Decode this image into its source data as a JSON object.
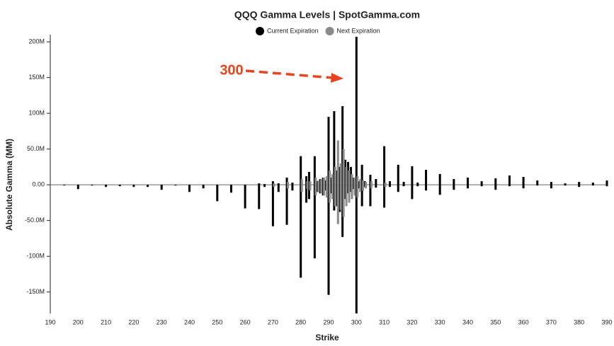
{
  "chart_data": {
    "type": "bar",
    "title": "QQQ Gamma Levels | SpotGamma.com",
    "x_label": "Strike",
    "y_label": "Absolute Gamma (MM)",
    "annotation": {
      "text": "300",
      "color": "#e8441e"
    },
    "x": [
      195,
      200,
      205,
      210,
      215,
      220,
      225,
      230,
      235,
      240,
      245,
      250,
      255,
      260,
      265,
      267,
      270,
      272,
      275,
      277,
      280,
      282,
      283,
      285,
      286,
      287,
      288,
      289,
      290,
      291,
      292,
      293,
      294,
      295,
      296,
      297,
      298,
      299,
      300,
      301,
      302,
      303,
      305,
      307,
      310,
      312,
      315,
      317,
      320,
      322,
      325,
      330,
      335,
      340,
      345,
      350,
      355,
      360,
      365,
      370,
      375,
      380,
      385,
      390
    ],
    "series": [
      {
        "name": "Current Expiration",
        "color": "#000000",
        "values": [
          null,
          null,
          null,
          null,
          null,
          null,
          null,
          null,
          null,
          null,
          null,
          null,
          null,
          null,
          2,
          1,
          5,
          2,
          10,
          3,
          40,
          12,
          18,
          40,
          5,
          8,
          10,
          6,
          95,
          10,
          103,
          20,
          25,
          110,
          35,
          32,
          25,
          10,
          207,
          5,
          28,
          5,
          14,
          8,
          54,
          5,
          28,
          4,
          26,
          3,
          21,
          15,
          8,
          10,
          5,
          9,
          13,
          11,
          6,
          4,
          2,
          4,
          3,
          6
        ],
        "negative_values": [
          -1,
          -6,
          -1,
          -3,
          -2,
          -3,
          -3,
          -7,
          -1,
          -10,
          -5,
          -23,
          -11,
          -33,
          -34,
          -3,
          -58,
          -10,
          -56,
          -8,
          -130,
          -25,
          -20,
          -103,
          -10,
          -12,
          -15,
          -8,
          -154,
          -12,
          -36,
          -30,
          -38,
          -73,
          -20,
          -12,
          -10,
          -6,
          -180,
          -5,
          -30,
          -3,
          -30,
          -4,
          -32,
          -3,
          -10,
          -2,
          -20,
          -2,
          -8,
          -14,
          -7,
          -5,
          -2,
          -7,
          -2,
          -5,
          -1,
          -5,
          -1,
          -3,
          -1,
          -2
        ]
      },
      {
        "name": "Next Expiration",
        "color": "#8a8a8a",
        "values": [
          null,
          null,
          null,
          null,
          null,
          null,
          null,
          null,
          null,
          null,
          null,
          null,
          null,
          null,
          null,
          null,
          2,
          null,
          4,
          null,
          8,
          5,
          5,
          10,
          6,
          8,
          10,
          12,
          20,
          15,
          25,
          62,
          30,
          50,
          25,
          20,
          15,
          10,
          12,
          8,
          6,
          4,
          5,
          null,
          3,
          null,
          null,
          null,
          null,
          null,
          null,
          null,
          null,
          null,
          null,
          null,
          null,
          null,
          null,
          null,
          null,
          null,
          null,
          null
        ],
        "negative_values": [
          null,
          null,
          null,
          null,
          null,
          null,
          null,
          null,
          null,
          null,
          null,
          null,
          null,
          null,
          null,
          null,
          -3,
          null,
          -5,
          null,
          -10,
          -6,
          -8,
          -15,
          -10,
          -12,
          -15,
          -18,
          -25,
          -20,
          -30,
          -55,
          -35,
          -45,
          -30,
          -25,
          -20,
          -15,
          -18,
          -10,
          -8,
          -5,
          -5,
          null,
          -3,
          null,
          null,
          null,
          null,
          null,
          null,
          null,
          null,
          null,
          null,
          null,
          null,
          null,
          null,
          null,
          null,
          null,
          null,
          null
        ]
      }
    ],
    "xlim": [
      190,
      390
    ],
    "xticks": [
      190,
      200,
      210,
      220,
      230,
      240,
      250,
      260,
      270,
      280,
      290,
      300,
      310,
      320,
      330,
      340,
      350,
      360,
      370,
      380,
      390
    ],
    "ylim": [
      -180,
      210
    ],
    "yticks": [
      {
        "value": 200,
        "label": "200M"
      },
      {
        "value": 150,
        "label": "150M"
      },
      {
        "value": 100,
        "label": "100M"
      },
      {
        "value": 50,
        "label": "50.0M"
      },
      {
        "value": 0,
        "label": "0.00"
      },
      {
        "value": -50,
        "label": "-50.0M"
      },
      {
        "value": -100,
        "label": "-100M"
      },
      {
        "value": -150,
        "label": "-150M"
      }
    ],
    "grid": false
  }
}
